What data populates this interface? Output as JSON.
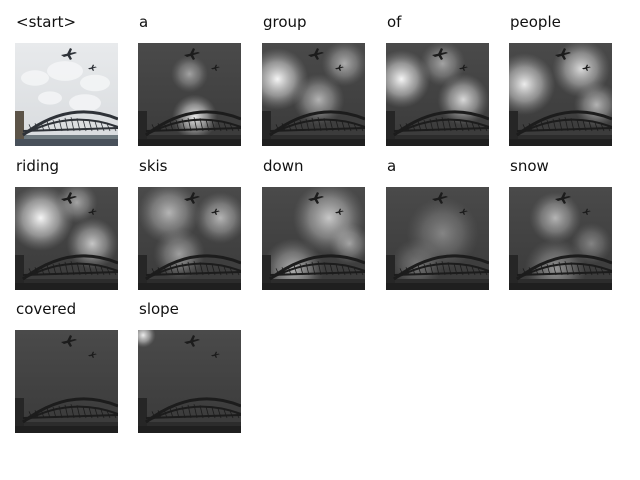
{
  "figure": {
    "words": [
      "<start>",
      "a",
      "group",
      "of",
      "people",
      "riding",
      "skis",
      "down",
      "a",
      "snow",
      "covered",
      "slope"
    ],
    "attention_maps": [
      [],
      [
        [
          0.55,
          0.72,
          0.22,
          0.9
        ],
        [
          0.5,
          0.3,
          0.18,
          0.5
        ]
      ],
      [
        [
          0.15,
          0.35,
          0.3,
          0.95
        ],
        [
          0.55,
          0.55,
          0.25,
          0.6
        ],
        [
          0.8,
          0.2,
          0.22,
          0.55
        ]
      ],
      [
        [
          0.15,
          0.35,
          0.28,
          0.95
        ],
        [
          0.75,
          0.55,
          0.25,
          0.8
        ],
        [
          0.55,
          0.2,
          0.22,
          0.5
        ]
      ],
      [
        [
          0.15,
          0.4,
          0.3,
          0.9
        ],
        [
          0.7,
          0.25,
          0.28,
          0.8
        ],
        [
          0.85,
          0.6,
          0.22,
          0.6
        ]
      ],
      [
        [
          0.25,
          0.3,
          0.32,
          0.95
        ],
        [
          0.75,
          0.55,
          0.25,
          0.7
        ],
        [
          0.6,
          0.15,
          0.2,
          0.5
        ]
      ],
      [
        [
          0.3,
          0.25,
          0.3,
          0.6
        ],
        [
          0.8,
          0.3,
          0.25,
          0.6
        ],
        [
          0.4,
          0.65,
          0.25,
          0.5
        ]
      ],
      [
        [
          0.65,
          0.3,
          0.35,
          0.7
        ],
        [
          0.3,
          0.8,
          0.3,
          0.6
        ],
        [
          0.85,
          0.55,
          0.2,
          0.5
        ]
      ],
      [
        [
          0.55,
          0.45,
          0.35,
          0.35
        ],
        [
          0.3,
          0.75,
          0.25,
          0.3
        ]
      ],
      [
        [
          0.45,
          0.3,
          0.25,
          0.6
        ],
        [
          0.45,
          0.8,
          0.3,
          0.45
        ],
        [
          0.8,
          0.55,
          0.2,
          0.35
        ]
      ],
      [],
      [
        [
          0.05,
          0.05,
          0.12,
          0.9
        ]
      ]
    ]
  }
}
